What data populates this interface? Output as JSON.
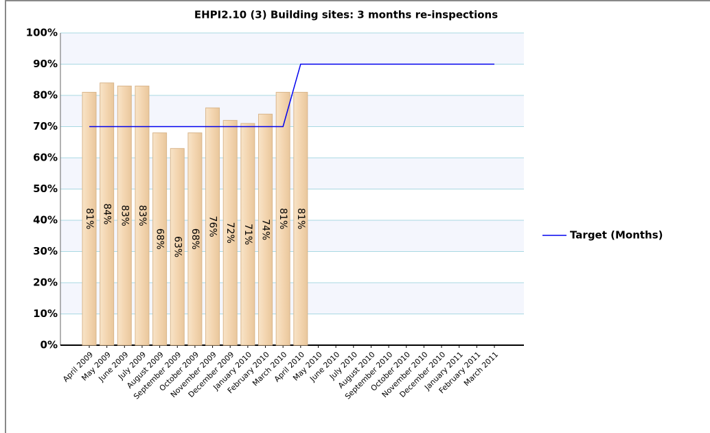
{
  "chart_data": {
    "type": "bar-line",
    "title": "EHPI2.10 (3) Building sites: 3 months re-inspections",
    "categories": [
      "April 2009",
      "May 2009",
      "June 2009",
      "July 2009",
      "August 2009",
      "September 2009",
      "October 2009",
      "November 2009",
      "December 2009",
      "January 2010",
      "February 2010",
      "March 2010",
      "April 2010",
      "May 2010",
      "June 2010",
      "July 2010",
      "August 2010",
      "September 2010",
      "October 2010",
      "November 2010",
      "December 2010",
      "January 2011",
      "February 2011",
      "March 2011"
    ],
    "bars": {
      "color": "#f3d5b0",
      "values": [
        81,
        84,
        83,
        83,
        68,
        63,
        68,
        76,
        72,
        71,
        74,
        81,
        81,
        null,
        null,
        null,
        null,
        null,
        null,
        null,
        null,
        null,
        null,
        null
      ],
      "value_labels": [
        "81%",
        "84%",
        "83%",
        "83%",
        "68%",
        "63%",
        "68%",
        "76%",
        "72%",
        "71%",
        "74%",
        "81%",
        "81%",
        null,
        null,
        null,
        null,
        null,
        null,
        null,
        null,
        null,
        null,
        null
      ]
    },
    "series": [
      {
        "name": "Target (Months)",
        "color": "#0000ee",
        "values": [
          70,
          70,
          70,
          70,
          70,
          70,
          70,
          70,
          70,
          70,
          70,
          70,
          90,
          90,
          90,
          90,
          90,
          90,
          90,
          90,
          90,
          90,
          90,
          90
        ]
      }
    ],
    "ylim": [
      0,
      100
    ],
    "yticks": [
      {
        "value": 0,
        "label": "0%"
      },
      {
        "value": 10,
        "label": "10%"
      },
      {
        "value": 20,
        "label": "20%"
      },
      {
        "value": 30,
        "label": "30%"
      },
      {
        "value": 40,
        "label": "40%"
      },
      {
        "value": 50,
        "label": "50%"
      },
      {
        "value": 60,
        "label": "60%"
      },
      {
        "value": 70,
        "label": "70%"
      },
      {
        "value": 80,
        "label": "80%"
      },
      {
        "value": 90,
        "label": "90%"
      },
      {
        "value": 100,
        "label": "100%"
      }
    ],
    "grid": true,
    "legend": "right"
  }
}
